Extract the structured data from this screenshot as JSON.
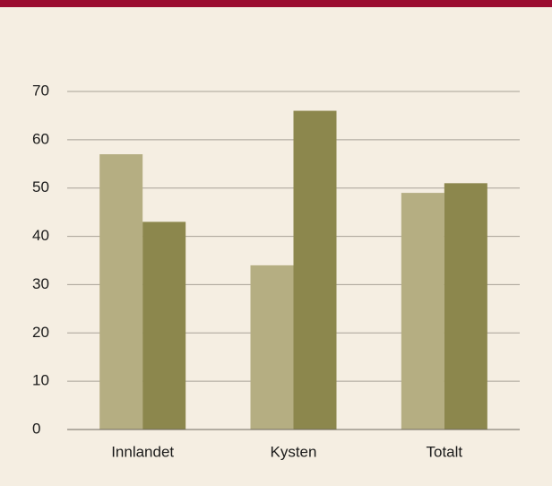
{
  "chart_data": {
    "type": "bar",
    "categories": [
      "Innlandet",
      "Kysten",
      "Totalt"
    ],
    "series": [
      {
        "color": "#b5ae82",
        "values": [
          57,
          34,
          49
        ]
      },
      {
        "color": "#8c874d",
        "values": [
          43,
          66,
          51
        ]
      }
    ],
    "ylim": [
      0,
      70
    ],
    "yticks": [
      0,
      10,
      20,
      30,
      40,
      50,
      60,
      70
    ],
    "grid": true
  }
}
